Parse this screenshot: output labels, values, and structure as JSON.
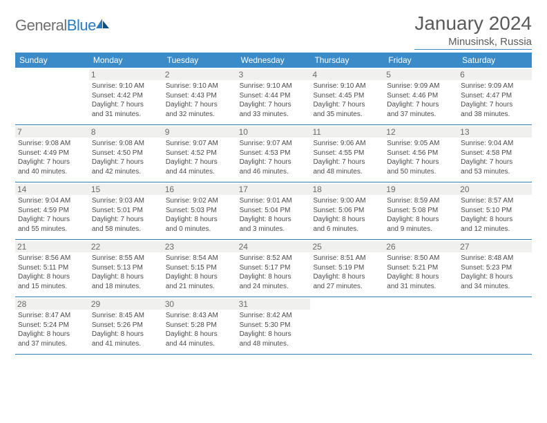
{
  "brand": {
    "part1": "General",
    "part2": "Blue"
  },
  "colors": {
    "accent": "#3b8bc9",
    "header_text": "#ffffff",
    "daynum_bg": "#f0f0ef",
    "text": "#4a4a4a",
    "title": "#5a5a5a",
    "logo_gray": "#6f6f6f",
    "logo_blue": "#2a7bbf"
  },
  "title": "January 2024",
  "location": "Minusinsk, Russia",
  "weekdays": [
    "Sunday",
    "Monday",
    "Tuesday",
    "Wednesday",
    "Thursday",
    "Friday",
    "Saturday"
  ],
  "weeks": [
    [
      {
        "day": "",
        "sunrise": "",
        "sunset": "",
        "daylight1": "",
        "daylight2": "",
        "empty": true
      },
      {
        "day": "1",
        "sunrise": "Sunrise: 9:10 AM",
        "sunset": "Sunset: 4:42 PM",
        "daylight1": "Daylight: 7 hours",
        "daylight2": "and 31 minutes."
      },
      {
        "day": "2",
        "sunrise": "Sunrise: 9:10 AM",
        "sunset": "Sunset: 4:43 PM",
        "daylight1": "Daylight: 7 hours",
        "daylight2": "and 32 minutes."
      },
      {
        "day": "3",
        "sunrise": "Sunrise: 9:10 AM",
        "sunset": "Sunset: 4:44 PM",
        "daylight1": "Daylight: 7 hours",
        "daylight2": "and 33 minutes."
      },
      {
        "day": "4",
        "sunrise": "Sunrise: 9:10 AM",
        "sunset": "Sunset: 4:45 PM",
        "daylight1": "Daylight: 7 hours",
        "daylight2": "and 35 minutes."
      },
      {
        "day": "5",
        "sunrise": "Sunrise: 9:09 AM",
        "sunset": "Sunset: 4:46 PM",
        "daylight1": "Daylight: 7 hours",
        "daylight2": "and 37 minutes."
      },
      {
        "day": "6",
        "sunrise": "Sunrise: 9:09 AM",
        "sunset": "Sunset: 4:47 PM",
        "daylight1": "Daylight: 7 hours",
        "daylight2": "and 38 minutes."
      }
    ],
    [
      {
        "day": "7",
        "sunrise": "Sunrise: 9:08 AM",
        "sunset": "Sunset: 4:49 PM",
        "daylight1": "Daylight: 7 hours",
        "daylight2": "and 40 minutes."
      },
      {
        "day": "8",
        "sunrise": "Sunrise: 9:08 AM",
        "sunset": "Sunset: 4:50 PM",
        "daylight1": "Daylight: 7 hours",
        "daylight2": "and 42 minutes."
      },
      {
        "day": "9",
        "sunrise": "Sunrise: 9:07 AM",
        "sunset": "Sunset: 4:52 PM",
        "daylight1": "Daylight: 7 hours",
        "daylight2": "and 44 minutes."
      },
      {
        "day": "10",
        "sunrise": "Sunrise: 9:07 AM",
        "sunset": "Sunset: 4:53 PM",
        "daylight1": "Daylight: 7 hours",
        "daylight2": "and 46 minutes."
      },
      {
        "day": "11",
        "sunrise": "Sunrise: 9:06 AM",
        "sunset": "Sunset: 4:55 PM",
        "daylight1": "Daylight: 7 hours",
        "daylight2": "and 48 minutes."
      },
      {
        "day": "12",
        "sunrise": "Sunrise: 9:05 AM",
        "sunset": "Sunset: 4:56 PM",
        "daylight1": "Daylight: 7 hours",
        "daylight2": "and 50 minutes."
      },
      {
        "day": "13",
        "sunrise": "Sunrise: 9:04 AM",
        "sunset": "Sunset: 4:58 PM",
        "daylight1": "Daylight: 7 hours",
        "daylight2": "and 53 minutes."
      }
    ],
    [
      {
        "day": "14",
        "sunrise": "Sunrise: 9:04 AM",
        "sunset": "Sunset: 4:59 PM",
        "daylight1": "Daylight: 7 hours",
        "daylight2": "and 55 minutes."
      },
      {
        "day": "15",
        "sunrise": "Sunrise: 9:03 AM",
        "sunset": "Sunset: 5:01 PM",
        "daylight1": "Daylight: 7 hours",
        "daylight2": "and 58 minutes."
      },
      {
        "day": "16",
        "sunrise": "Sunrise: 9:02 AM",
        "sunset": "Sunset: 5:03 PM",
        "daylight1": "Daylight: 8 hours",
        "daylight2": "and 0 minutes."
      },
      {
        "day": "17",
        "sunrise": "Sunrise: 9:01 AM",
        "sunset": "Sunset: 5:04 PM",
        "daylight1": "Daylight: 8 hours",
        "daylight2": "and 3 minutes."
      },
      {
        "day": "18",
        "sunrise": "Sunrise: 9:00 AM",
        "sunset": "Sunset: 5:06 PM",
        "daylight1": "Daylight: 8 hours",
        "daylight2": "and 6 minutes."
      },
      {
        "day": "19",
        "sunrise": "Sunrise: 8:59 AM",
        "sunset": "Sunset: 5:08 PM",
        "daylight1": "Daylight: 8 hours",
        "daylight2": "and 9 minutes."
      },
      {
        "day": "20",
        "sunrise": "Sunrise: 8:57 AM",
        "sunset": "Sunset: 5:10 PM",
        "daylight1": "Daylight: 8 hours",
        "daylight2": "and 12 minutes."
      }
    ],
    [
      {
        "day": "21",
        "sunrise": "Sunrise: 8:56 AM",
        "sunset": "Sunset: 5:11 PM",
        "daylight1": "Daylight: 8 hours",
        "daylight2": "and 15 minutes."
      },
      {
        "day": "22",
        "sunrise": "Sunrise: 8:55 AM",
        "sunset": "Sunset: 5:13 PM",
        "daylight1": "Daylight: 8 hours",
        "daylight2": "and 18 minutes."
      },
      {
        "day": "23",
        "sunrise": "Sunrise: 8:54 AM",
        "sunset": "Sunset: 5:15 PM",
        "daylight1": "Daylight: 8 hours",
        "daylight2": "and 21 minutes."
      },
      {
        "day": "24",
        "sunrise": "Sunrise: 8:52 AM",
        "sunset": "Sunset: 5:17 PM",
        "daylight1": "Daylight: 8 hours",
        "daylight2": "and 24 minutes."
      },
      {
        "day": "25",
        "sunrise": "Sunrise: 8:51 AM",
        "sunset": "Sunset: 5:19 PM",
        "daylight1": "Daylight: 8 hours",
        "daylight2": "and 27 minutes."
      },
      {
        "day": "26",
        "sunrise": "Sunrise: 8:50 AM",
        "sunset": "Sunset: 5:21 PM",
        "daylight1": "Daylight: 8 hours",
        "daylight2": "and 31 minutes."
      },
      {
        "day": "27",
        "sunrise": "Sunrise: 8:48 AM",
        "sunset": "Sunset: 5:23 PM",
        "daylight1": "Daylight: 8 hours",
        "daylight2": "and 34 minutes."
      }
    ],
    [
      {
        "day": "28",
        "sunrise": "Sunrise: 8:47 AM",
        "sunset": "Sunset: 5:24 PM",
        "daylight1": "Daylight: 8 hours",
        "daylight2": "and 37 minutes."
      },
      {
        "day": "29",
        "sunrise": "Sunrise: 8:45 AM",
        "sunset": "Sunset: 5:26 PM",
        "daylight1": "Daylight: 8 hours",
        "daylight2": "and 41 minutes."
      },
      {
        "day": "30",
        "sunrise": "Sunrise: 8:43 AM",
        "sunset": "Sunset: 5:28 PM",
        "daylight1": "Daylight: 8 hours",
        "daylight2": "and 44 minutes."
      },
      {
        "day": "31",
        "sunrise": "Sunrise: 8:42 AM",
        "sunset": "Sunset: 5:30 PM",
        "daylight1": "Daylight: 8 hours",
        "daylight2": "and 48 minutes."
      },
      {
        "day": "",
        "sunrise": "",
        "sunset": "",
        "daylight1": "",
        "daylight2": "",
        "empty": true
      },
      {
        "day": "",
        "sunrise": "",
        "sunset": "",
        "daylight1": "",
        "daylight2": "",
        "empty": true
      },
      {
        "day": "",
        "sunrise": "",
        "sunset": "",
        "daylight1": "",
        "daylight2": "",
        "empty": true
      }
    ]
  ]
}
